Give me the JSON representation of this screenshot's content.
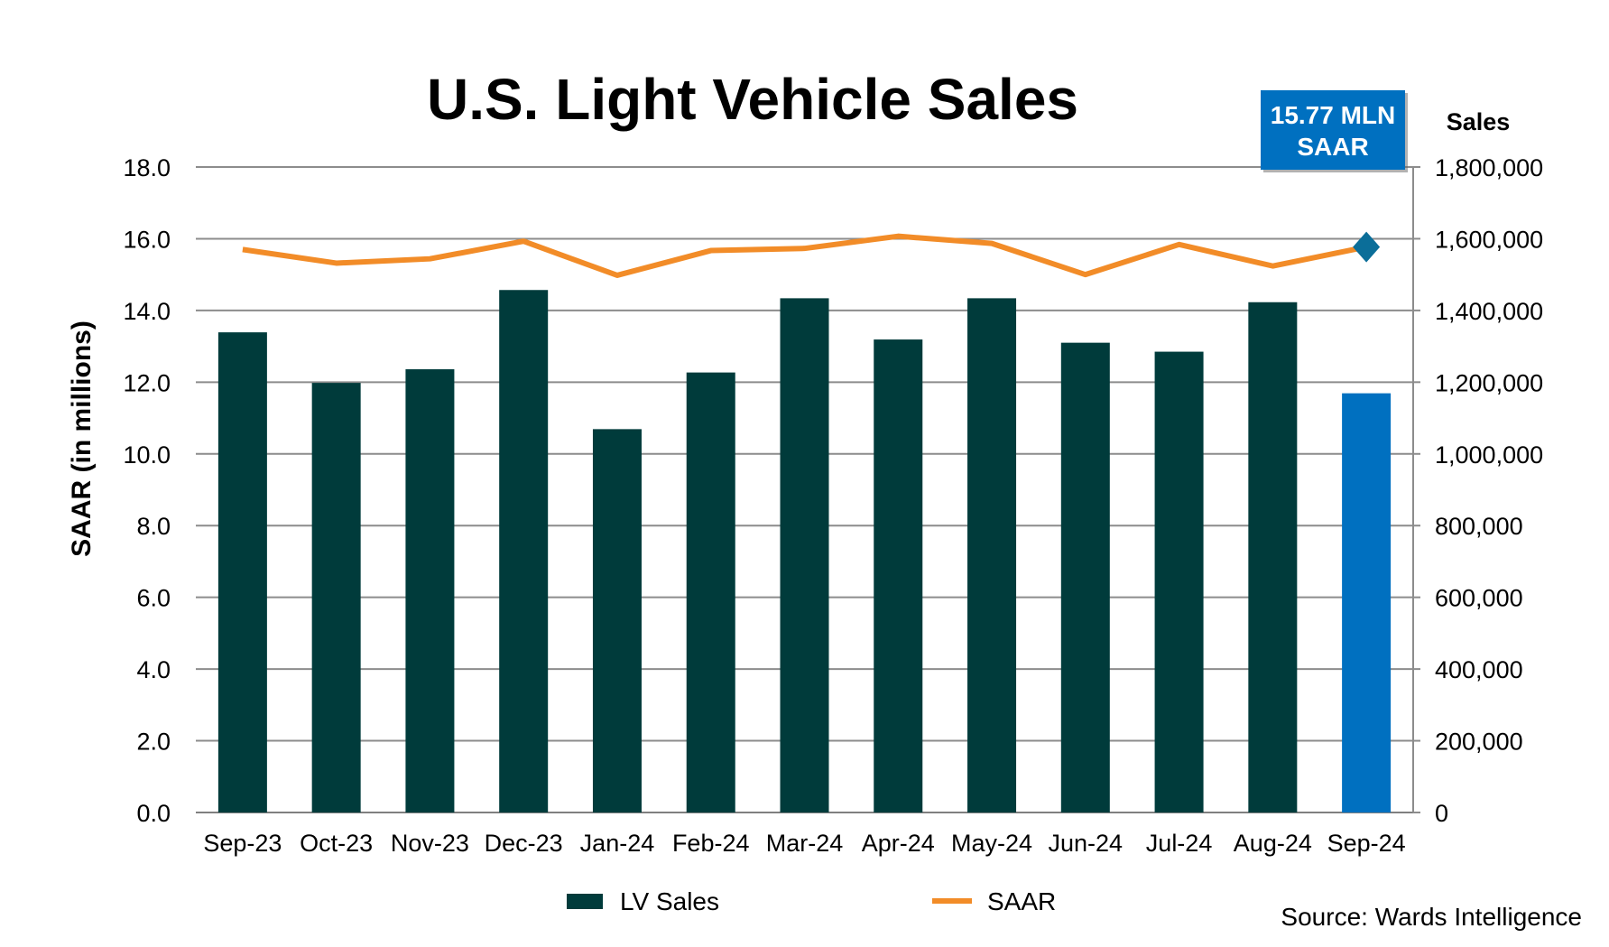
{
  "chart_data": {
    "type": "bar",
    "title": "U.S. Light Vehicle Sales",
    "categories": [
      "Sep-23",
      "Oct-23",
      "Nov-23",
      "Dec-23",
      "Jan-24",
      "Feb-24",
      "Mar-24",
      "Apr-24",
      "May-24",
      "Jun-24",
      "Jul-24",
      "Aug-24",
      "Sep-24"
    ],
    "series": [
      {
        "name": "LV Sales",
        "type": "bar",
        "axis": "right",
        "color": "#003B3B",
        "highlight_color": "#0070C0",
        "highlight_index": 12,
        "values": [
          1339000,
          1198000,
          1236000,
          1457000,
          1069000,
          1227000,
          1434000,
          1319000,
          1434000,
          1310000,
          1285000,
          1423000,
          1169000
        ]
      },
      {
        "name": "SAAR",
        "type": "line",
        "axis": "left",
        "color": "#F28C28",
        "marker_color": "#0B6E99",
        "values": [
          15.7,
          15.32,
          15.44,
          15.93,
          14.98,
          15.67,
          15.73,
          16.07,
          15.87,
          15.0,
          15.84,
          15.24,
          15.77
        ]
      }
    ],
    "ylabel": "SAAR (in millions)",
    "ylabel_right": "Sales",
    "ylim": [
      0,
      18
    ],
    "ylim_right": [
      0,
      1800000
    ],
    "yticks": [
      "0.0",
      "2.0",
      "4.0",
      "6.0",
      "8.0",
      "10.0",
      "12.0",
      "14.0",
      "16.0",
      "18.0"
    ],
    "yticks_right": [
      "0",
      "200,000",
      "400,000",
      "600,000",
      "800,000",
      "1,000,000",
      "1,200,000",
      "1,400,000",
      "1,600,000",
      "1,800,000"
    ],
    "grid": true,
    "legend_position": "bottom",
    "callout": {
      "line1": "15.77 MLN",
      "line2": "SAAR",
      "color": "#0070C0"
    },
    "source": "Source: Wards Intelligence"
  }
}
